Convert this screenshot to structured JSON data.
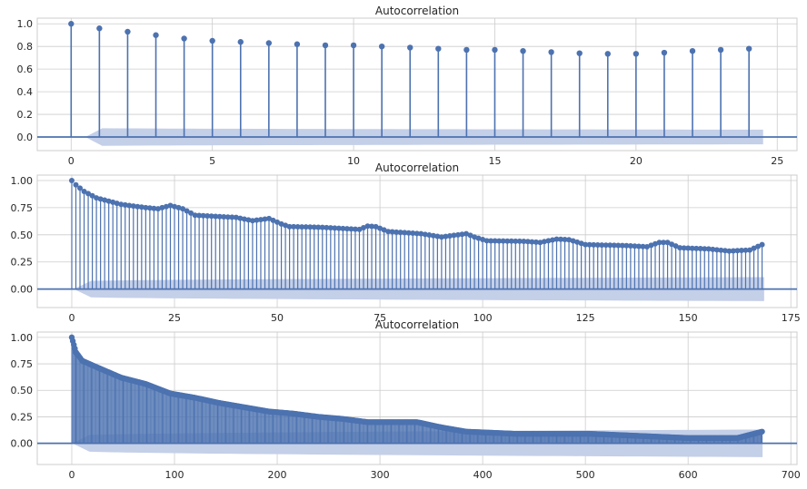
{
  "colors": {
    "stem": "#4c72b0",
    "band": "#c4cfe8",
    "zero": "#4c72b0"
  },
  "chart_data": [
    {
      "type": "stem",
      "title": "Autocorrelation",
      "xlim": [
        -1.2,
        25.7
      ],
      "ylim": [
        -0.12,
        1.05
      ],
      "xticks": [
        0,
        5,
        10,
        15,
        20,
        25
      ],
      "yticks": [
        0.0,
        0.2,
        0.4,
        0.6,
        0.8,
        1.0
      ],
      "ytick_labels": [
        "0.0",
        "0.2",
        "0.4",
        "0.6",
        "0.8",
        "1.0"
      ],
      "grid": true,
      "conf_band": {
        "start": 0.08,
        "end": 0.065
      },
      "lags": [
        0,
        1,
        2,
        3,
        4,
        5,
        6,
        7,
        8,
        9,
        10,
        11,
        12,
        13,
        14,
        15,
        16,
        17,
        18,
        19,
        20,
        21,
        22,
        23,
        24
      ],
      "values": [
        1.0,
        0.96,
        0.93,
        0.9,
        0.87,
        0.85,
        0.84,
        0.83,
        0.82,
        0.81,
        0.81,
        0.8,
        0.79,
        0.78,
        0.77,
        0.77,
        0.76,
        0.75,
        0.74,
        0.735,
        0.735,
        0.745,
        0.76,
        0.77,
        0.78
      ]
    },
    {
      "type": "stem",
      "title": "Autocorrelation",
      "xlim": [
        -8.4,
        176.5
      ],
      "ylim": [
        -0.17,
        1.05
      ],
      "xticks": [
        0,
        25,
        50,
        75,
        100,
        125,
        150,
        175
      ],
      "yticks": [
        0.0,
        0.25,
        0.5,
        0.75,
        1.0
      ],
      "ytick_labels": [
        "0.00",
        "0.25",
        "0.50",
        "0.75",
        "1.00"
      ],
      "grid": true,
      "conf_band": {
        "start": 0.07,
        "end": 0.11
      },
      "n_lags": 168,
      "shape": [
        [
          0,
          1.0
        ],
        [
          1,
          0.96
        ],
        [
          2,
          0.93
        ],
        [
          3,
          0.9
        ],
        [
          4,
          0.88
        ],
        [
          6,
          0.84
        ],
        [
          8,
          0.82
        ],
        [
          12,
          0.78
        ],
        [
          18,
          0.75
        ],
        [
          21,
          0.74
        ],
        [
          24,
          0.77
        ],
        [
          27,
          0.74
        ],
        [
          30,
          0.68
        ],
        [
          40,
          0.66
        ],
        [
          44,
          0.63
        ],
        [
          48,
          0.65
        ],
        [
          51,
          0.6
        ],
        [
          53,
          0.575
        ],
        [
          60,
          0.57
        ],
        [
          70,
          0.55
        ],
        [
          72,
          0.58
        ],
        [
          74,
          0.575
        ],
        [
          77,
          0.53
        ],
        [
          85,
          0.51
        ],
        [
          90,
          0.48
        ],
        [
          94,
          0.5
        ],
        [
          96,
          0.51
        ],
        [
          98,
          0.48
        ],
        [
          101,
          0.445
        ],
        [
          110,
          0.44
        ],
        [
          114,
          0.43
        ],
        [
          118,
          0.46
        ],
        [
          121,
          0.455
        ],
        [
          125,
          0.41
        ],
        [
          135,
          0.4
        ],
        [
          140,
          0.39
        ],
        [
          143,
          0.43
        ],
        [
          145,
          0.43
        ],
        [
          148,
          0.38
        ],
        [
          155,
          0.37
        ],
        [
          160,
          0.35
        ],
        [
          165,
          0.36
        ],
        [
          168,
          0.41
        ]
      ]
    },
    {
      "type": "stem",
      "title": "Autocorrelation",
      "xlim": [
        -33.6,
        706
      ],
      "ylim": [
        -0.2,
        1.05
      ],
      "xticks": [
        0,
        100,
        200,
        300,
        400,
        500,
        600,
        700
      ],
      "yticks": [
        0.0,
        0.25,
        0.5,
        0.75,
        1.0
      ],
      "ytick_labels": [
        "0.00",
        "0.25",
        "0.50",
        "0.75",
        "1.00"
      ],
      "grid": true,
      "conf_band": {
        "start": 0.07,
        "end": 0.13
      },
      "n_lags": 672,
      "shape": [
        [
          0,
          1.0
        ],
        [
          4,
          0.86
        ],
        [
          10,
          0.78
        ],
        [
          24,
          0.72
        ],
        [
          48,
          0.62
        ],
        [
          72,
          0.56
        ],
        [
          96,
          0.47
        ],
        [
          120,
          0.43
        ],
        [
          144,
          0.38
        ],
        [
          168,
          0.34
        ],
        [
          192,
          0.3
        ],
        [
          216,
          0.28
        ],
        [
          240,
          0.25
        ],
        [
          264,
          0.23
        ],
        [
          288,
          0.2
        ],
        [
          312,
          0.2
        ],
        [
          336,
          0.2
        ],
        [
          360,
          0.15
        ],
        [
          384,
          0.11
        ],
        [
          408,
          0.1
        ],
        [
          432,
          0.09
        ],
        [
          456,
          0.09
        ],
        [
          480,
          0.09
        ],
        [
          504,
          0.09
        ],
        [
          528,
          0.08
        ],
        [
          552,
          0.07
        ],
        [
          576,
          0.06
        ],
        [
          600,
          0.05
        ],
        [
          624,
          0.05
        ],
        [
          648,
          0.05
        ],
        [
          672,
          0.11
        ]
      ]
    }
  ]
}
